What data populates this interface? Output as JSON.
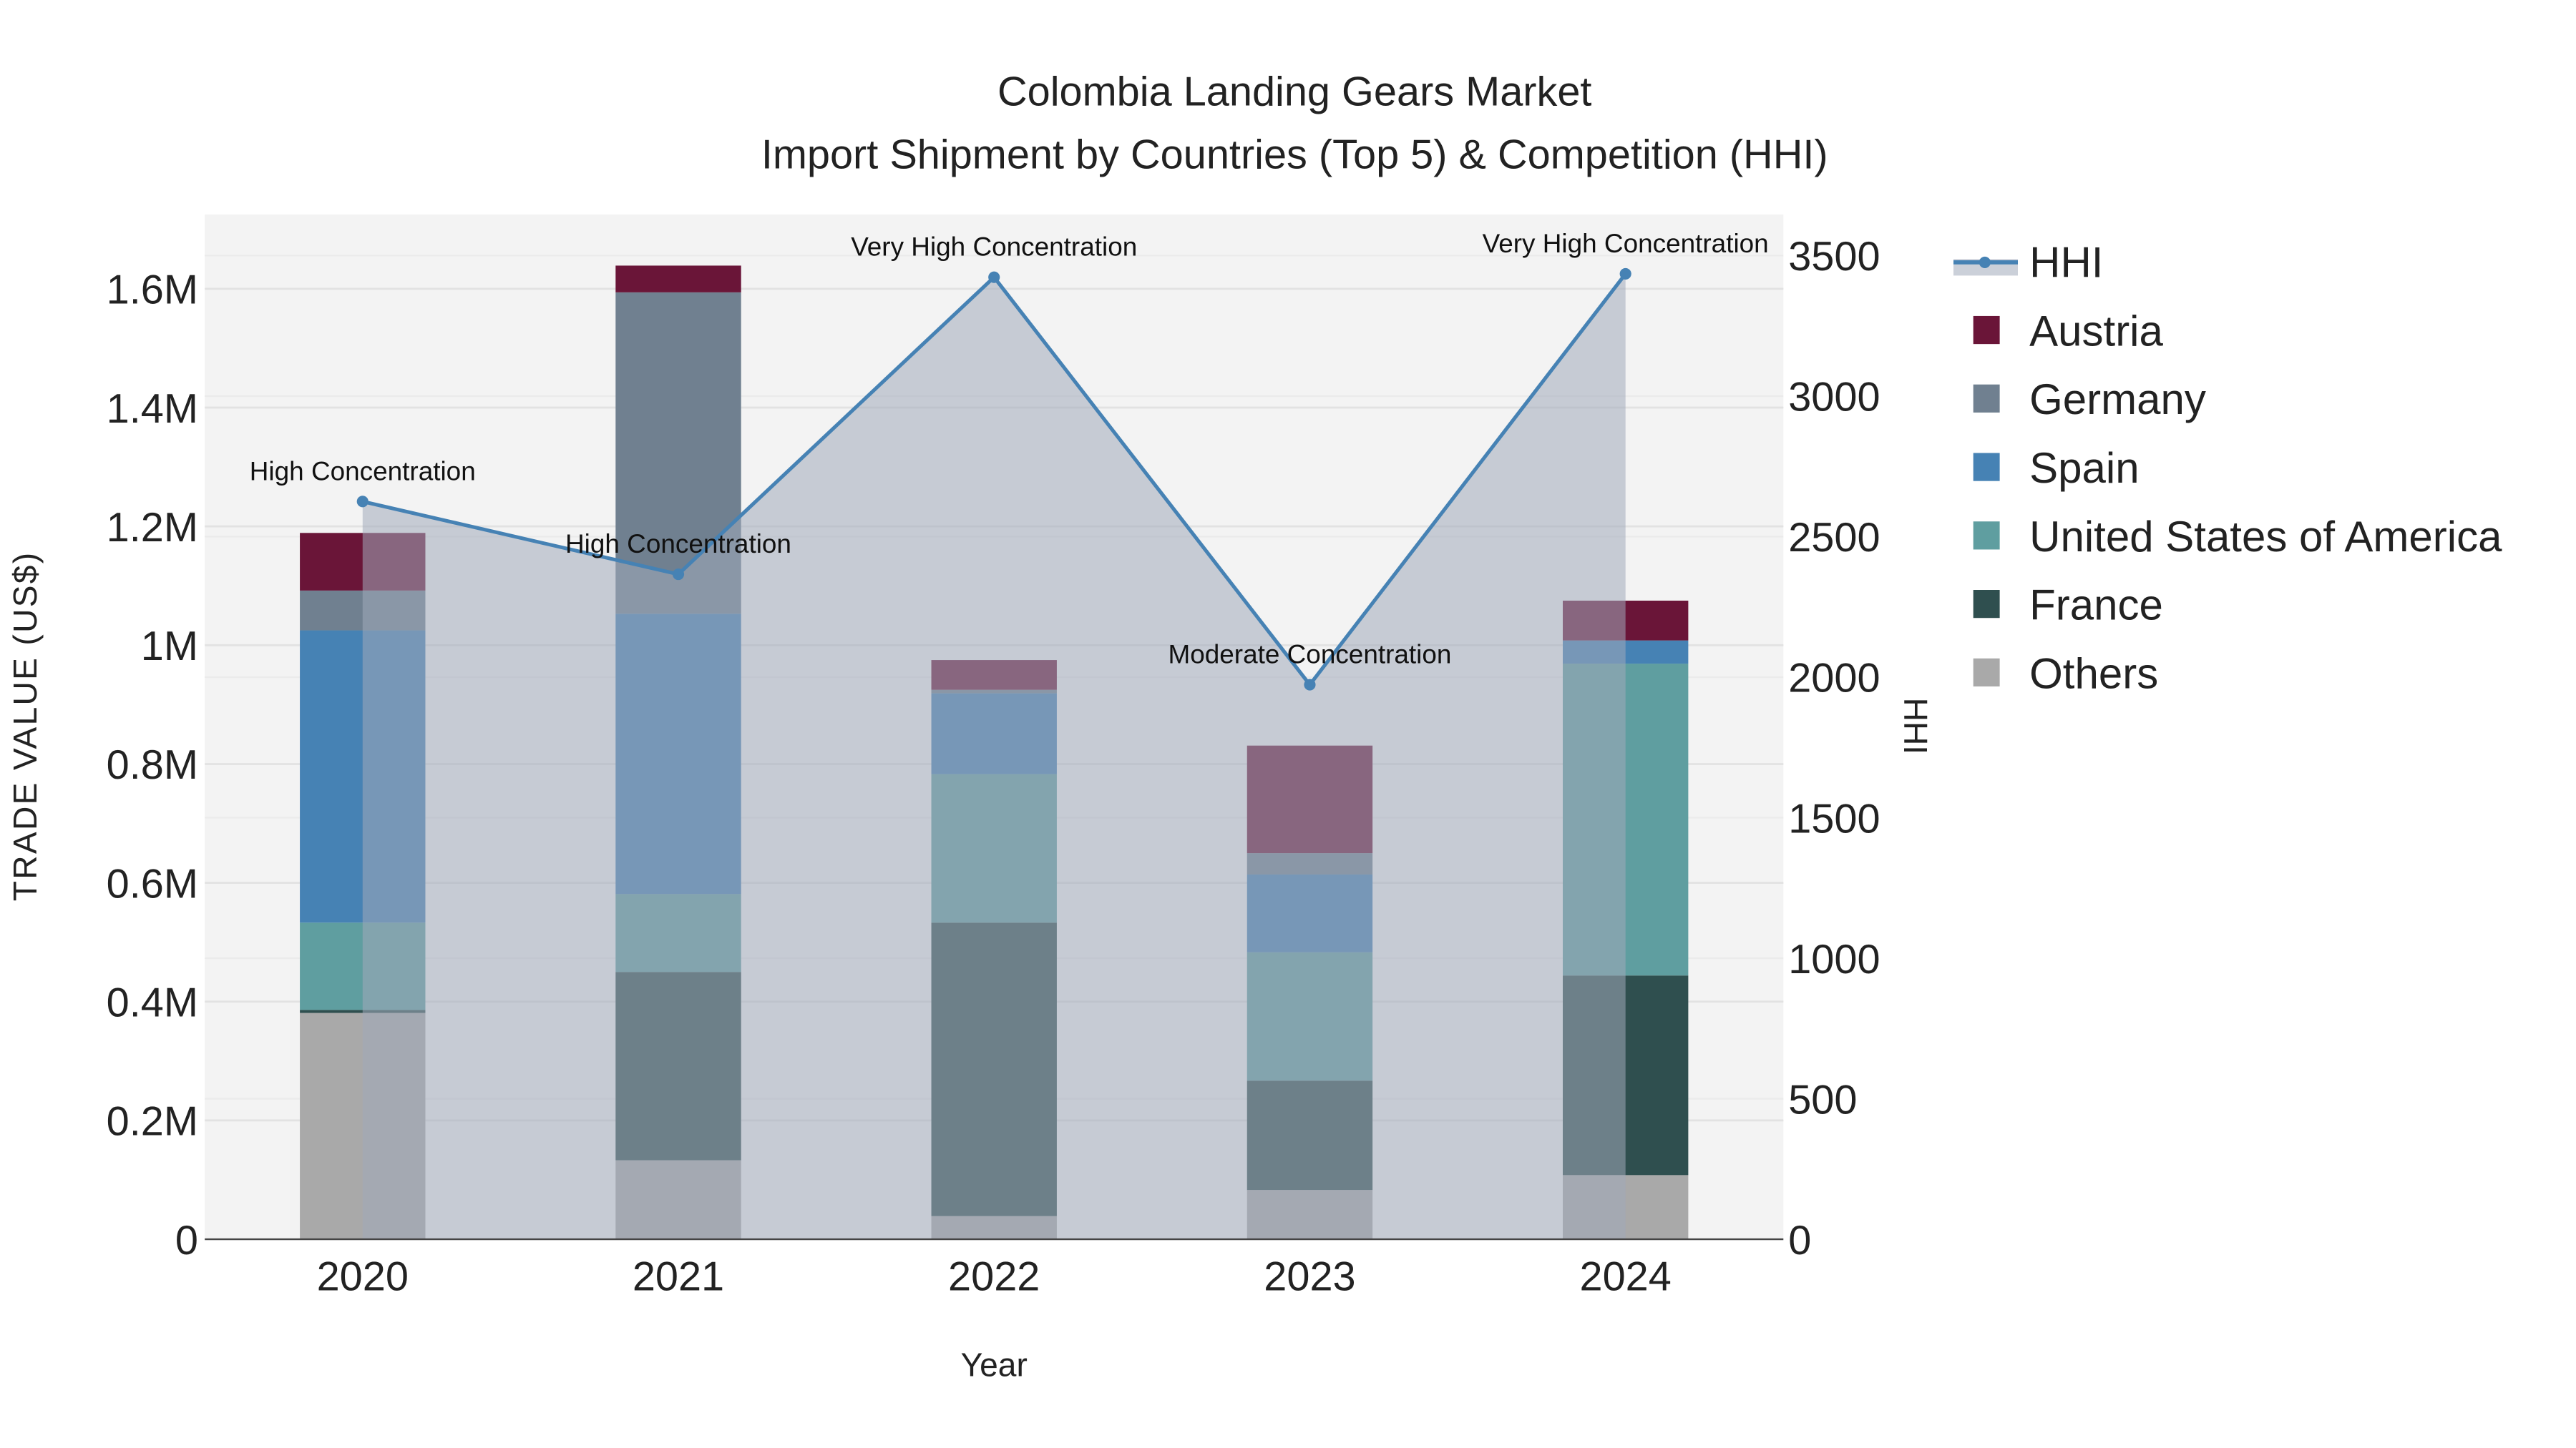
{
  "chart_data": {
    "type": "bar",
    "title": "Colombia Landing Gears Market",
    "subtitle": "Import Shipment by Countries (Top 5) & Competition (HHI)",
    "xlabel": "Year",
    "ylabel": "TRADE VALUE (US$)",
    "y2label": "HHI",
    "categories": [
      "2020",
      "2021",
      "2022",
      "2023",
      "2024"
    ],
    "ylim": [
      0,
      1720000
    ],
    "y2lim": [
      0,
      3640
    ],
    "yticks": [
      0,
      200000,
      400000,
      600000,
      800000,
      1000000,
      1200000,
      1400000,
      1600000
    ],
    "ytick_labels": [
      "0",
      "0.2M",
      "0.4M",
      "0.6M",
      "0.8M",
      "1M",
      "1.2M",
      "1.4M",
      "1.6M"
    ],
    "y2ticks": [
      0,
      500,
      1000,
      1500,
      2000,
      2500,
      3000,
      3500
    ],
    "y2tick_labels": [
      "0",
      "500",
      "1000",
      "1500",
      "2000",
      "2500",
      "3000",
      "3500"
    ],
    "legend_placement": "right",
    "series": [
      {
        "name": "Others",
        "color": "#a9a9a9",
        "values": [
          381000,
          133000,
          39000,
          83000,
          108000
        ]
      },
      {
        "name": "France",
        "color": "#2f4f4f",
        "values": [
          5000,
          317000,
          494000,
          184000,
          336000
        ]
      },
      {
        "name": "United States of America",
        "color": "#5f9ea0",
        "values": [
          147000,
          131000,
          250000,
          216000,
          525000
        ]
      },
      {
        "name": "Spain",
        "color": "#4682b4",
        "values": [
          492000,
          472000,
          136000,
          131000,
          39000
        ]
      },
      {
        "name": "Germany",
        "color": "#708090",
        "values": [
          67000,
          541000,
          6000,
          36000,
          0
        ]
      },
      {
        "name": "Austria",
        "color": "#6a1538",
        "values": [
          97000,
          45000,
          50000,
          181000,
          67000
        ]
      }
    ],
    "hhi": {
      "name": "HHI",
      "color": "#4682b4",
      "values": [
        2625,
        2366,
        3423,
        1973,
        3435
      ],
      "annotations": [
        "High Concentration",
        "High Concentration",
        "Very High Concentration",
        "Moderate Concentration",
        "Very High Concentration"
      ]
    },
    "legend_order": [
      "HHI",
      "Austria",
      "Germany",
      "Spain",
      "United States of America",
      "France",
      "Others"
    ]
  }
}
